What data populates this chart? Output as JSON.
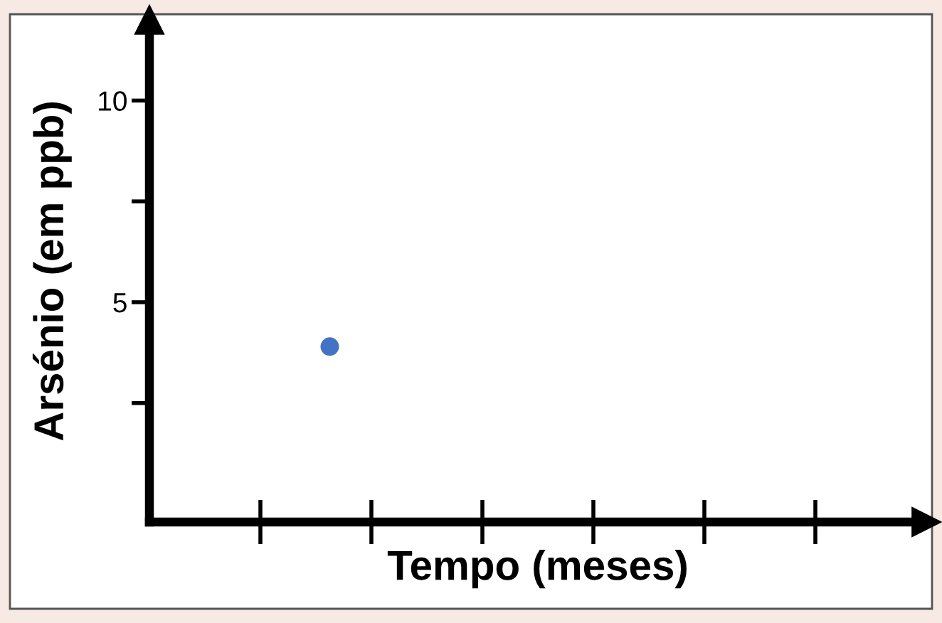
{
  "chart_data": {
    "type": "scatter",
    "xlabel": "Tempo (meses)",
    "ylabel": "Arsénio (em ppb)",
    "categories": [
      null,
      null,
      null,
      null,
      null,
      null,
      null,
      null,
      null,
      null,
      null,
      null,
      null,
      null,
      null,
      null,
      null,
      null,
      null,
      null,
      null,
      null,
      null,
      null,
      null,
      null,
      null,
      null
    ],
    "series": [
      {
        "color": "#4472c4",
        "values": [
          null,
          null,
          null,
          null,
          null,
          null,
          3.9,
          null,
          null,
          null,
          null,
          null,
          null,
          null,
          null,
          null,
          null,
          null,
          null,
          null,
          null,
          null,
          null,
          null,
          null,
          null,
          null,
          null
        ]
      }
    ],
    "marker": "circle",
    "ylim": [
      -0.45,
      12
    ],
    "yticks": [
      {
        "value": 2.5,
        "label": null
      },
      5,
      {
        "value": 7.5,
        "label": null
      },
      10
    ],
    "tick_labels": "y",
    "grid": false,
    "legend": false
  }
}
